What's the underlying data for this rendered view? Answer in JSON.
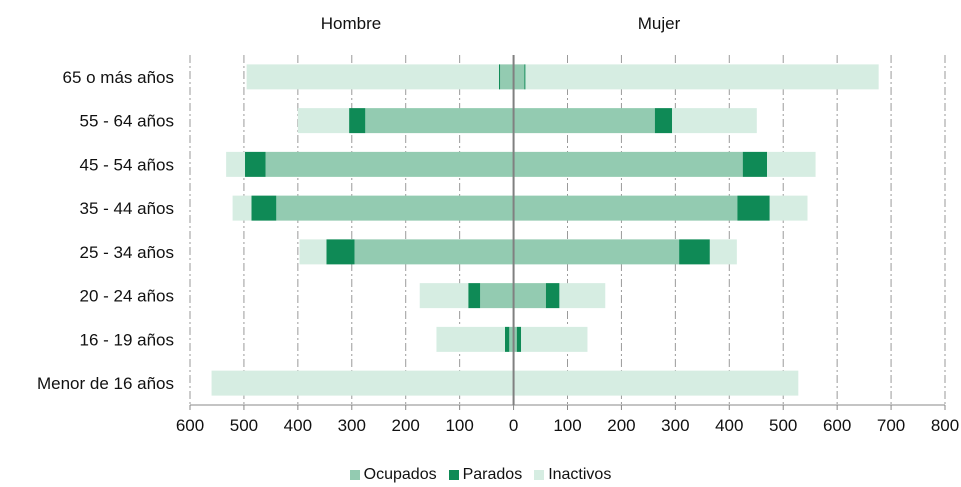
{
  "headers": {
    "left": "Hombre",
    "right": "Mujer"
  },
  "chart_data": {
    "type": "bar",
    "orientation": "horizontal",
    "layout": "population-pyramid",
    "categories": [
      "65 o más años",
      "55 - 64 años",
      "45 - 54 años",
      "35 - 44 años",
      "25 - 34 años",
      "20 - 24 años",
      "16 - 19 años",
      "Menor de 16 años"
    ],
    "groups": [
      "Hombre",
      "Mujer"
    ],
    "series": [
      {
        "name": "Ocupados",
        "color": "#93CBB1",
        "hombre": [
          25,
          275,
          460,
          440,
          295,
          62,
          8,
          0
        ],
        "mujer": [
          20,
          262,
          425,
          415,
          307,
          60,
          6,
          0
        ]
      },
      {
        "name": "Parados",
        "color": "#0F8A56",
        "hombre": [
          2,
          30,
          38,
          46,
          52,
          22,
          8,
          0
        ],
        "mujer": [
          2,
          32,
          45,
          60,
          57,
          25,
          8,
          0
        ]
      },
      {
        "name": "Inactivos",
        "color": "#D6EDE2",
        "hombre": [
          468,
          95,
          35,
          35,
          50,
          90,
          127,
          560
        ],
        "mujer": [
          655,
          157,
          90,
          70,
          50,
          85,
          123,
          528
        ]
      }
    ],
    "xlim": [
      -600,
      800
    ],
    "xticks": [
      "600",
      "500",
      "400",
      "300",
      "200",
      "100",
      "0",
      "100",
      "200",
      "300",
      "400",
      "500",
      "600",
      "700",
      "800"
    ],
    "xtick_values": [
      -600,
      -500,
      -400,
      -300,
      -200,
      -100,
      0,
      100,
      200,
      300,
      400,
      500,
      600,
      700,
      800
    ],
    "grid": "vertical-dashed",
    "legend_position": "bottom"
  }
}
